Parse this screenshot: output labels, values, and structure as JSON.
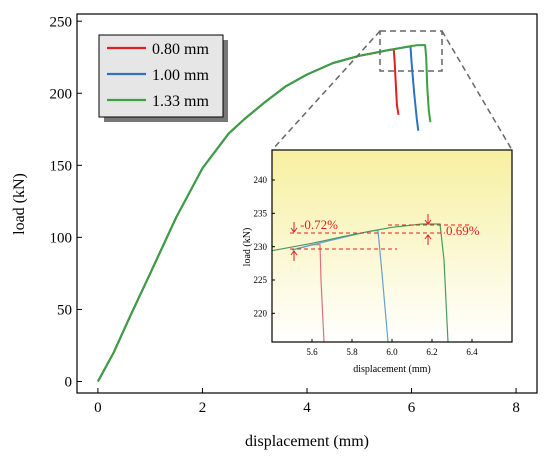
{
  "chart_data": [
    {
      "type": "line",
      "xlabel": "displacement (mm)",
      "ylabel": "load (kN)",
      "xlim": [
        -0.4,
        8.4
      ],
      "ylim": [
        -8,
        255
      ],
      "xticks": [
        0,
        2,
        4,
        6,
        8
      ],
      "yticks": [
        0,
        50,
        100,
        150,
        200,
        250
      ],
      "grid": false,
      "legend_position": "top-left",
      "series": [
        {
          "name": "0.80 mm",
          "color": "#e02020",
          "x": [
            0,
            0.3,
            0.6,
            1.0,
            1.5,
            2.0,
            2.5,
            2.8,
            3.2,
            3.6,
            4.0,
            4.5,
            5.0,
            5.3,
            5.5,
            5.6,
            5.66,
            5.68,
            5.7,
            5.72,
            5.75
          ],
          "y": [
            0,
            20,
            44,
            75,
            114,
            148,
            172,
            182,
            194,
            205,
            213,
            221,
            226,
            228,
            229.5,
            230.3,
            230.3,
            220,
            205,
            192,
            185
          ]
        },
        {
          "name": "1.00 mm",
          "color": "#2c72c4",
          "x": [
            0,
            0.3,
            0.6,
            1.0,
            1.5,
            2.0,
            2.5,
            2.8,
            3.2,
            3.6,
            4.0,
            4.5,
            5.0,
            5.5,
            5.8,
            5.95,
            5.98,
            6.0,
            6.05,
            6.1,
            6.13
          ],
          "y": [
            0,
            20,
            44,
            75,
            114,
            148,
            172,
            182,
            194,
            205,
            213,
            221,
            226,
            229.5,
            231.5,
            232.4,
            232.4,
            222,
            200,
            182,
            174
          ]
        },
        {
          "name": "1.33 mm",
          "color": "#3aa040",
          "x": [
            0,
            0.3,
            0.6,
            1.0,
            1.5,
            2.0,
            2.5,
            2.8,
            3.2,
            3.6,
            4.0,
            4.5,
            5.0,
            5.5,
            5.8,
            6.0,
            6.1,
            6.2,
            6.26,
            6.28,
            6.3,
            6.33,
            6.36
          ],
          "y": [
            0,
            20,
            44,
            75,
            114,
            148,
            172,
            182,
            194,
            205,
            213,
            221,
            226,
            229.5,
            231.5,
            232.8,
            233.3,
            233.4,
            233.4,
            225,
            205,
            188,
            180
          ]
        }
      ]
    },
    {
      "type": "line",
      "xlabel": "displacement (mm)",
      "ylabel": "load (kN)",
      "xlim": [
        5.4,
        6.6
      ],
      "ylim": [
        215.7,
        244.5
      ],
      "xticks": [
        5.6,
        5.8,
        6.0,
        6.2,
        6.4
      ],
      "yticks": [
        220,
        225,
        230,
        235,
        240
      ],
      "grid": false,
      "annotations": [
        {
          "text": "-0.72%",
          "color": "#e02020"
        },
        {
          "text": "0.69%",
          "color": "#e02020"
        }
      ],
      "series": [
        {
          "name": "0.80 mm",
          "color": "#e07080",
          "x": [
            5.5,
            5.6,
            5.64,
            5.645,
            5.66
          ],
          "y": [
            229.5,
            230.3,
            230.3,
            225,
            215.7
          ]
        },
        {
          "name": "1.00 mm",
          "color": "#6a9fd0",
          "x": [
            5.5,
            5.7,
            5.9,
            5.93,
            5.95,
            5.98
          ],
          "y": [
            229.5,
            231.0,
            232.4,
            232.4,
            226,
            215.7
          ]
        },
        {
          "name": "1.33 mm",
          "color": "#4a9a60",
          "x": [
            5.4,
            5.6,
            5.8,
            6.0,
            6.15,
            6.24,
            6.26,
            6.28
          ],
          "y": [
            229.4,
            230.5,
            231.8,
            232.9,
            233.4,
            233.4,
            228,
            215.7
          ]
        }
      ]
    }
  ]
}
